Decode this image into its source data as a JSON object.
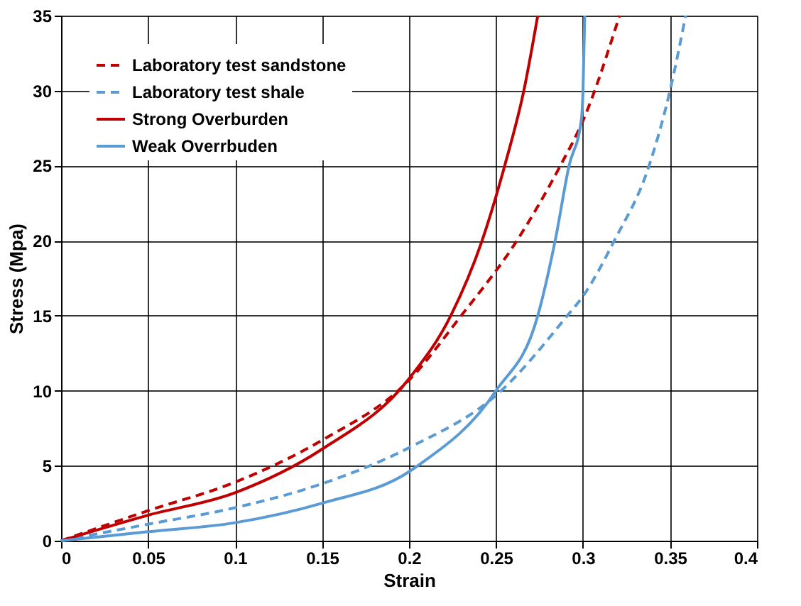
{
  "chart_data": {
    "type": "line",
    "xlabel": "Strain",
    "ylabel": "Stress (Mpa)",
    "xlim": [
      0,
      0.4
    ],
    "xticks": [
      0,
      0.05,
      0.1,
      0.15,
      0.2,
      0.25,
      0.3,
      0.35,
      0.4
    ],
    "ylim": [
      0,
      35
    ],
    "yticks": [
      0,
      5,
      10,
      15,
      20,
      25,
      30,
      35
    ],
    "grid": true,
    "legend": "top left",
    "marker": "none",
    "series": [
      {
        "name": "Laboratory test sandstone",
        "color": "#c00000",
        "line_style": "dashed",
        "x": [
          0,
          0.05,
          0.1,
          0.15,
          0.2,
          0.23,
          0.262,
          0.287,
          0.3,
          0.321
        ],
        "values": [
          0,
          2.0,
          3.9,
          6.7,
          10.7,
          15,
          20,
          25,
          28,
          35
        ]
      },
      {
        "name": "Laboratory test shale",
        "color": "#5b9bd5",
        "line_style": "dashed",
        "x": [
          0,
          0.05,
          0.1,
          0.15,
          0.2,
          0.253,
          0.291,
          0.3,
          0.318,
          0.338,
          0.35,
          0.359
        ],
        "values": [
          0,
          1.1,
          2.2,
          3.8,
          6.2,
          10,
          15,
          16.3,
          20,
          25,
          30,
          35
        ]
      },
      {
        "name": "Strong Overburden",
        "color": "#c00000",
        "line_style": "solid",
        "x": [
          0,
          0.05,
          0.1,
          0.15,
          0.2,
          0.224,
          0.242,
          0.255,
          0.266,
          0.274
        ],
        "values": [
          0,
          1.7,
          3.2,
          6.1,
          10.8,
          15,
          20,
          25,
          30,
          35
        ]
      },
      {
        "name": "Weak Overrbuden",
        "color": "#5b9bd5",
        "line_style": "solid",
        "x": [
          0,
          0.05,
          0.1,
          0.15,
          0.2,
          0.205,
          0.25,
          0.274,
          0.284,
          0.292,
          0.299,
          0.3,
          0.301
        ],
        "values": [
          0,
          0.6,
          1.2,
          2.5,
          4.6,
          5,
          10,
          15,
          20,
          25,
          28,
          30,
          35
        ]
      }
    ]
  }
}
